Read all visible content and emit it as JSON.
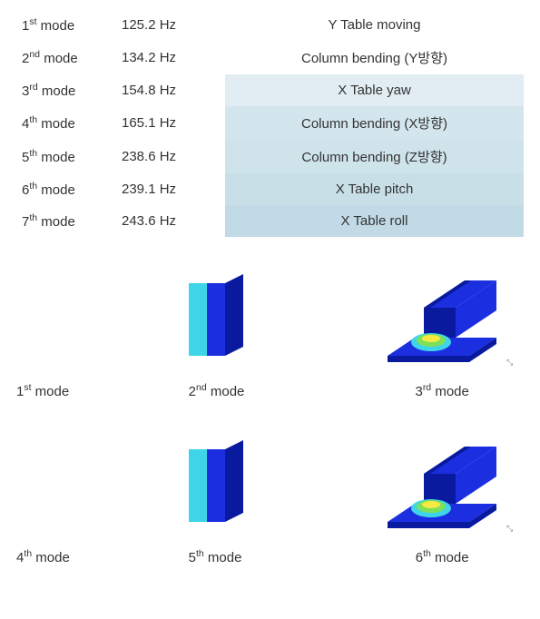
{
  "table": {
    "rows": [
      {
        "mode_num": "1",
        "ord": "st",
        "freq": "125.2 Hz",
        "desc": "Y Table moving",
        "band": ""
      },
      {
        "mode_num": "2",
        "ord": "nd",
        "freq": "134.2 Hz",
        "desc": "Column bending (Y방향)",
        "band": ""
      },
      {
        "mode_num": "3",
        "ord": "rd",
        "freq": "154.8 Hz",
        "desc": "X Table yaw",
        "band": "band-1"
      },
      {
        "mode_num": "4",
        "ord": "th",
        "freq": "165.1 Hz",
        "desc": "Column bending (X방향)",
        "band": "band-2"
      },
      {
        "mode_num": "5",
        "ord": "th",
        "freq": "238.6 Hz",
        "desc": "Column bending (Z방향)",
        "band": "band-3"
      },
      {
        "mode_num": "6",
        "ord": "th",
        "freq": "239.1 Hz",
        "desc": "X Table pitch",
        "band": "band-4"
      },
      {
        "mode_num": "7",
        "ord": "th",
        "freq": "243.6 Hz",
        "desc": "X Table roll",
        "band": "band-5"
      }
    ]
  },
  "figures": {
    "row1": [
      {
        "mode_num": "1",
        "ord": "st",
        "img": "blank",
        "cap_align": "left"
      },
      {
        "mode_num": "2",
        "ord": "nd",
        "img": "partial",
        "cap_align": "left"
      },
      {
        "mode_num": "3",
        "ord": "rd",
        "img": "full",
        "cap_align": "center"
      }
    ],
    "row2": [
      {
        "mode_num": "4",
        "ord": "th",
        "img": "blank",
        "cap_align": "left"
      },
      {
        "mode_num": "5",
        "ord": "th",
        "img": "partial",
        "cap_align": "left"
      },
      {
        "mode_num": "6",
        "ord": "th",
        "img": "full",
        "cap_align": "center"
      }
    ]
  },
  "colors": {
    "machine_body": "#1c2fe0",
    "machine_dark": "#0a1a9e",
    "accent_cyan": "#3ed5e8",
    "accent_green": "#7de05a",
    "accent_yellow": "#f5e942",
    "accent_orange": "#f5a742"
  }
}
